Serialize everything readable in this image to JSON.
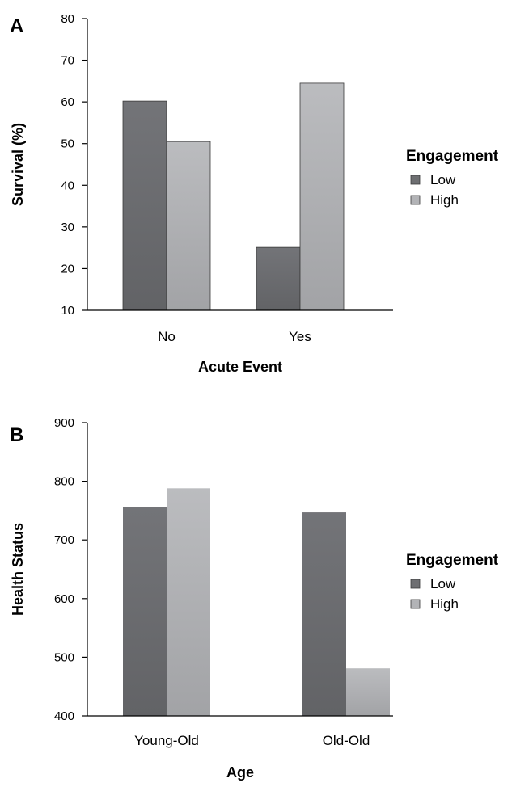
{
  "chart_data": [
    {
      "type": "bar",
      "panel_label": "A",
      "categories": [
        "No",
        "Yes"
      ],
      "series": [
        {
          "name": "Low",
          "values": [
            60.2,
            25.1
          ],
          "color": "#6e6f72"
        },
        {
          "name": "High",
          "values": [
            50.5,
            64.5
          ],
          "color": "#b2b3b6"
        }
      ],
      "xlabel": "Acute Event",
      "ylabel": "Survival (%)",
      "ylim": [
        10,
        80
      ],
      "yticks": [
        "10",
        "20",
        "30",
        "40",
        "50",
        "60",
        "70",
        "80"
      ],
      "legend": {
        "title": "Engagement",
        "position": "right",
        "entries": [
          "Low",
          "High"
        ]
      },
      "grid": false
    },
    {
      "type": "bar",
      "panel_label": "B",
      "categories": [
        "Young-Old",
        "Old-Old"
      ],
      "series": [
        {
          "name": "Low",
          "values": [
            756,
            747
          ],
          "color": "#6e6f72"
        },
        {
          "name": "High",
          "values": [
            788,
            481
          ],
          "color": "#b2b3b6"
        }
      ],
      "xlabel": "Age",
      "ylabel": "Health Status",
      "ylim": [
        400,
        900
      ],
      "yticks": [
        "400",
        "500",
        "600",
        "700",
        "800",
        "900"
      ],
      "legend": {
        "title": "Engagement",
        "position": "right",
        "entries": [
          "Low",
          "High"
        ]
      },
      "grid": false
    }
  ]
}
